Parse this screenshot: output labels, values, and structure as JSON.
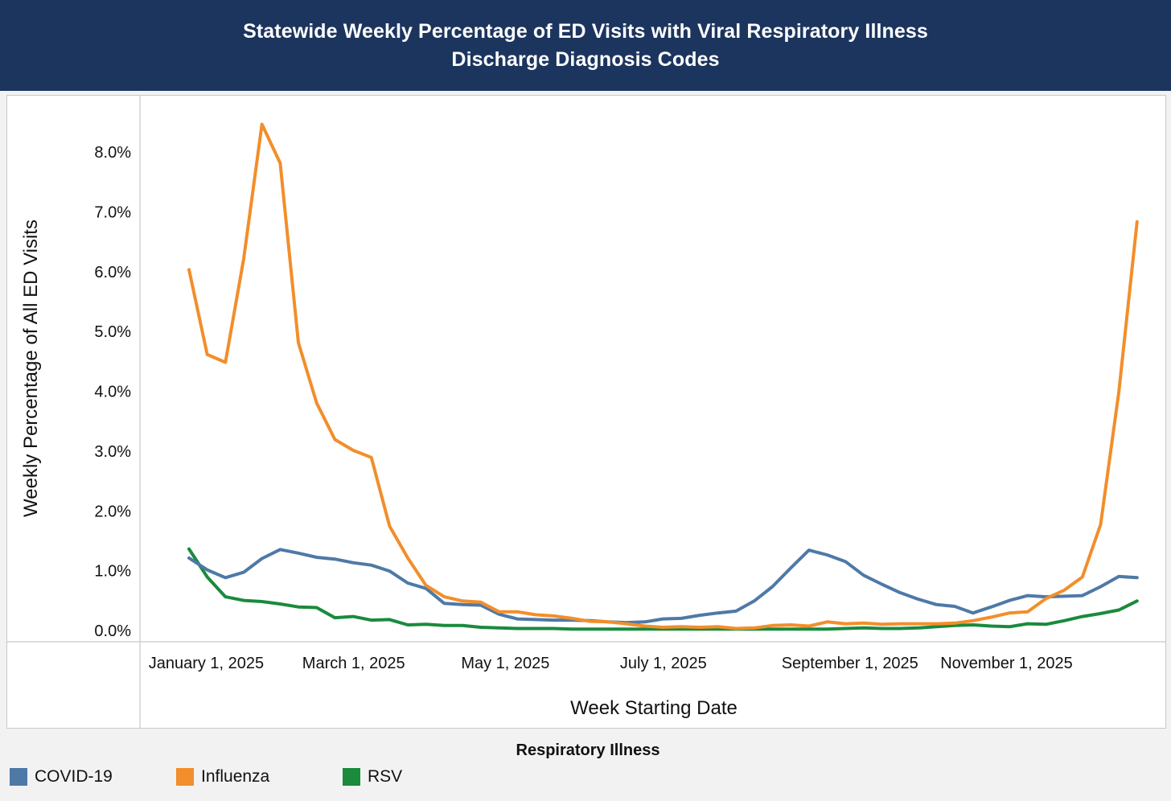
{
  "header": {
    "title_line1": "Statewide Weekly Percentage of ED Visits with Viral Respiratory Illness",
    "title_line2": "Discharge Diagnosis Codes"
  },
  "legend": {
    "title": "Respiratory Illness",
    "items": [
      {
        "label": "COVID-19",
        "color": "#4e79a7"
      },
      {
        "label": "Influenza",
        "color": "#f28e2b"
      },
      {
        "label": "RSV",
        "color": "#1a8a3d"
      }
    ]
  },
  "chart_data": {
    "type": "line",
    "title": "Statewide Weekly Percentage of ED Visits with Viral Respiratory Illness Discharge Diagnosis Codes",
    "xlabel": "Week Starting Date",
    "ylabel": "Weekly Percentage of All ED Visits",
    "ylim": [
      0,
      8.5
    ],
    "yticks": [
      0,
      1,
      2,
      3,
      4,
      5,
      6,
      7,
      8
    ],
    "ytick_labels": [
      "0.0%",
      "1.0%",
      "2.0%",
      "3.0%",
      "4.0%",
      "5.0%",
      "6.0%",
      "7.0%",
      "8.0%"
    ],
    "x_start_date": "December 29, 2024",
    "x_interval": "weekly",
    "xticks": [
      {
        "label": "January 1, 2025",
        "day_offset": 3
      },
      {
        "label": "March 1, 2025",
        "day_offset": 62
      },
      {
        "label": "May 1, 2025",
        "day_offset": 123
      },
      {
        "label": "July 1, 2025",
        "day_offset": 184
      },
      {
        "label": "September 1, 2025",
        "day_offset": 246
      },
      {
        "label": "November 1, 2025",
        "day_offset": 307
      }
    ],
    "grid": false,
    "legend_position": "bottom",
    "series": [
      {
        "name": "COVID-19",
        "color": "#4e79a7",
        "values": [
          1.2,
          1.0,
          0.87,
          0.96,
          1.19,
          1.34,
          1.28,
          1.21,
          1.18,
          1.12,
          1.08,
          0.98,
          0.78,
          0.69,
          0.44,
          0.42,
          0.41,
          0.26,
          0.18,
          0.17,
          0.16,
          0.16,
          0.15,
          0.13,
          0.12,
          0.13,
          0.18,
          0.19,
          0.24,
          0.28,
          0.31,
          0.48,
          0.72,
          1.03,
          1.33,
          1.25,
          1.14,
          0.91,
          0.76,
          0.62,
          0.51,
          0.42,
          0.39,
          0.28,
          0.38,
          0.49,
          0.57,
          0.55,
          0.56,
          0.57,
          0.72,
          0.89,
          0.87
        ]
      },
      {
        "name": "Influenza",
        "color": "#f28e2b",
        "values": [
          6.02,
          4.6,
          4.47,
          6.2,
          8.45,
          7.8,
          4.8,
          3.79,
          3.18,
          3.0,
          2.88,
          1.73,
          1.2,
          0.74,
          0.55,
          0.48,
          0.46,
          0.3,
          0.3,
          0.25,
          0.23,
          0.19,
          0.14,
          0.13,
          0.1,
          0.06,
          0.04,
          0.05,
          0.04,
          0.05,
          0.02,
          0.03,
          0.07,
          0.08,
          0.06,
          0.13,
          0.1,
          0.11,
          0.09,
          0.1,
          0.1,
          0.1,
          0.11,
          0.15,
          0.21,
          0.28,
          0.3,
          0.52,
          0.66,
          0.88,
          1.76,
          3.98,
          6.82
        ]
      },
      {
        "name": "RSV",
        "color": "#1a8a3d",
        "values": [
          1.35,
          0.88,
          0.55,
          0.49,
          0.47,
          0.43,
          0.38,
          0.37,
          0.2,
          0.22,
          0.16,
          0.17,
          0.08,
          0.09,
          0.07,
          0.07,
          0.04,
          0.03,
          0.02,
          0.02,
          0.02,
          0.01,
          0.01,
          0.01,
          0.01,
          0.01,
          0.01,
          0.01,
          0.01,
          0.01,
          0.01,
          0.01,
          0.01,
          0.01,
          0.01,
          0.01,
          0.02,
          0.03,
          0.02,
          0.02,
          0.03,
          0.05,
          0.07,
          0.08,
          0.06,
          0.05,
          0.1,
          0.09,
          0.15,
          0.22,
          0.27,
          0.33,
          0.48
        ]
      }
    ]
  }
}
